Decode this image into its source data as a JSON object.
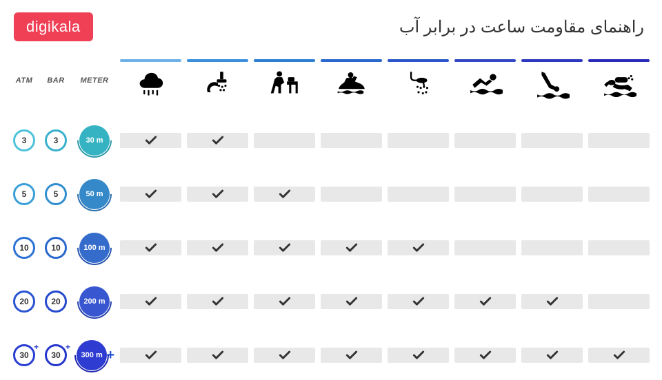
{
  "logo_text": "digikala",
  "title": "راهنمای مقاومت ساعت در برابر آب",
  "headers": {
    "atm": "ATM",
    "bar": "BAR",
    "meter": "METER"
  },
  "activity_bar_colors": [
    "#6fb1e6",
    "#3b8fdc",
    "#2d7ed4",
    "#2a68ce",
    "#2c55c9",
    "#3247c5",
    "#2c38c0",
    "#2a2ab8"
  ],
  "rows": [
    {
      "atm": "3",
      "bar": "3",
      "meter": "30 m",
      "atm_color": "#4ec3d9",
      "bar_color": "#38b0cc",
      "meter_bg": "#36b3c2",
      "meter_arc": "#2b99a8",
      "plus": false,
      "checks": [
        true,
        true,
        false,
        false,
        false,
        false,
        false,
        false
      ]
    },
    {
      "atm": "5",
      "bar": "5",
      "meter": "50 m",
      "atm_color": "#3a9fd9",
      "bar_color": "#2f8ed0",
      "meter_bg": "#3589c8",
      "meter_arc": "#2a6fb0",
      "plus": false,
      "checks": [
        true,
        true,
        true,
        false,
        false,
        false,
        false,
        false
      ]
    },
    {
      "atm": "10",
      "bar": "10",
      "meter": "100 m",
      "atm_color": "#2d73d4",
      "bar_color": "#2867cc",
      "meter_bg": "#356ccc",
      "meter_arc": "#2554b0",
      "plus": false,
      "checks": [
        true,
        true,
        true,
        true,
        true,
        false,
        false,
        false
      ]
    },
    {
      "atm": "20",
      "bar": "20",
      "meter": "200 m",
      "atm_color": "#2a55d2",
      "bar_color": "#2449cc",
      "meter_bg": "#3756d0",
      "meter_arc": "#2540b0",
      "plus": false,
      "checks": [
        true,
        true,
        true,
        true,
        true,
        true,
        true,
        false
      ]
    },
    {
      "atm": "30",
      "bar": "30",
      "meter": "300 m",
      "atm_color": "#2a3ed2",
      "bar_color": "#2436cc",
      "meter_bg": "#2e3cd2",
      "meter_arc": "#2028b0",
      "plus": true,
      "checks": [
        true,
        true,
        true,
        true,
        true,
        true,
        true,
        true
      ]
    }
  ],
  "colors": {
    "logo_bg": "#ef4056",
    "cell_bg": "#e8e8e8",
    "check": "#333"
  }
}
